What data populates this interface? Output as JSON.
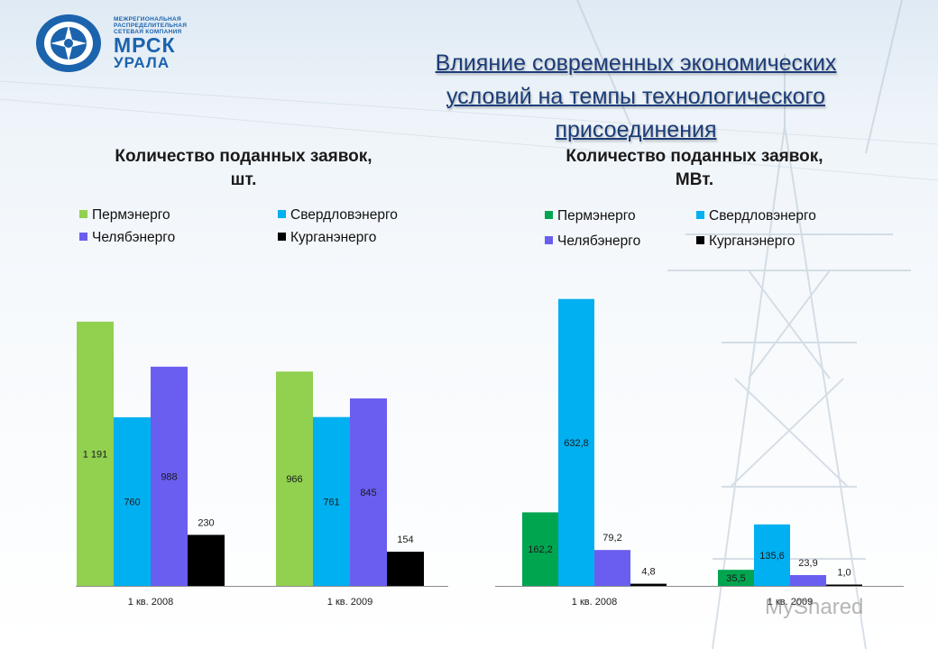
{
  "header": {
    "logo_line1": "МЕЖРЕГИОНАЛЬНАЯ",
    "logo_line2": "РАСПРЕДЕЛИТЕЛЬНАЯ",
    "logo_line3": "СЕТЕВАЯ КОМПАНИЯ",
    "logo_main": "МРСК",
    "logo_sub": "УРАЛА",
    "title_line1": "Влияние  современных экономических",
    "title_line2": "условий на темпы технологического",
    "title_line3": "присоединения"
  },
  "watermark": "MyShared",
  "colors": {
    "perm_left": "#92d050",
    "perm_right": "#00a550",
    "sverdlovsk": "#00b0f0",
    "chelyabinsk": "#6a5ef0",
    "kurgan": "#000000"
  },
  "chart_data": [
    {
      "type": "bar",
      "title_line1": "Количество поданных заявок,",
      "title_line2": "шт.",
      "categories": [
        "1 кв. 2008",
        "1 кв. 2009"
      ],
      "series": [
        {
          "name": "Пермэнерго",
          "values": [
            1191,
            966
          ],
          "labels": [
            "1 191",
            "966"
          ]
        },
        {
          "name": "Свердловэнерго",
          "values": [
            760,
            761
          ],
          "labels": [
            "760",
            "761"
          ]
        },
        {
          "name": "Челябэнерго",
          "values": [
            988,
            845
          ],
          "labels": [
            "988",
            "845"
          ]
        },
        {
          "name": "Курганэнерго",
          "values": [
            230,
            154
          ],
          "labels": [
            "230",
            "154"
          ]
        }
      ],
      "ylim": [
        0,
        1300
      ],
      "legend_placement": "top"
    },
    {
      "type": "bar",
      "title_line1": "Количество поданных заявок,",
      "title_line2": "МВт.",
      "categories": [
        "1 кв. 2008",
        "1 кв. 2009"
      ],
      "series": [
        {
          "name": "Пермэнерго",
          "values": [
            162.2,
            35.5
          ],
          "labels": [
            "162,2",
            "35,5"
          ]
        },
        {
          "name": "Свердловэнерго",
          "values": [
            632.8,
            135.6
          ],
          "labels": [
            "632,8",
            "135,6"
          ]
        },
        {
          "name": "Челябэнерго",
          "values": [
            79.2,
            23.9
          ],
          "labels": [
            "79,2",
            "23,9"
          ]
        },
        {
          "name": "Курганэнерго",
          "values": [
            4.8,
            1.0
          ],
          "labels": [
            "4,8",
            "1,0"
          ]
        }
      ],
      "ylim": [
        0,
        660
      ],
      "legend_placement": "top"
    }
  ]
}
